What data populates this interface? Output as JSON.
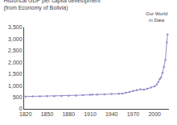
{
  "chart_data": {
    "type": "line",
    "title": "Historical GDP per capita development (from Economy of Bolivia)",
    "annotations": [
      "Our World\nin Data"
    ],
    "x": [
      1820,
      1830,
      1840,
      1850,
      1860,
      1870,
      1880,
      1890,
      1900,
      1910,
      1913,
      1920,
      1930,
      1940,
      1950,
      1955,
      1960,
      1965,
      1970,
      1975,
      1980,
      1985,
      1990,
      1995,
      2000,
      2003,
      2005,
      2007,
      2009,
      2011,
      2013,
      2015,
      2017,
      2018
    ],
    "values": [
      530,
      535,
      540,
      543,
      546,
      552,
      562,
      572,
      590,
      605,
      615,
      618,
      625,
      638,
      648,
      660,
      690,
      730,
      770,
      810,
      840,
      820,
      870,
      920,
      970,
      1050,
      1150,
      1280,
      1350,
      1550,
      1800,
      2100,
      2850,
      3200
    ],
    "color": "#9988cc",
    "marker": "circle",
    "xlim": [
      1818,
      2020
    ],
    "xticks": [
      1820,
      1850,
      1880,
      1910,
      1940,
      1970,
      2000
    ],
    "ylim": [
      0,
      3500
    ],
    "yticks": [
      0,
      500,
      {
        "value": 1000,
        "label": "1,000"
      },
      {
        "value": 1500,
        "label": "1,500"
      },
      {
        "value": 2000,
        "label": "2,000"
      },
      {
        "value": 2500,
        "label": "2,500"
      },
      {
        "value": 3000,
        "label": "3,000"
      },
      {
        "value": 3500,
        "label": "3,500"
      }
    ],
    "grid": false
  }
}
